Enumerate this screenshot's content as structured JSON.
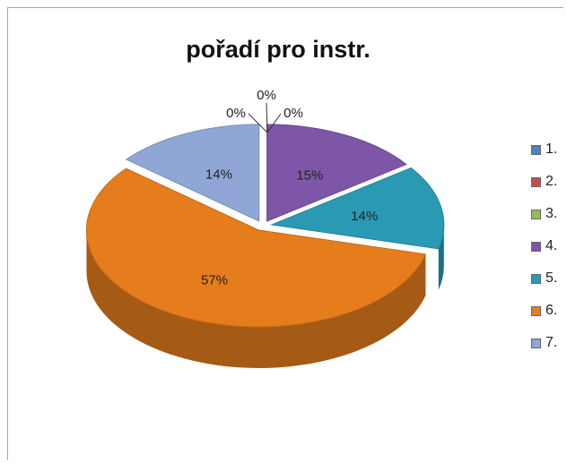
{
  "chart_data": {
    "type": "pie",
    "title": "pořadí pro instr.",
    "categories": [
      "1.",
      "2.",
      "3.",
      "4.",
      "5.",
      "6.",
      "7."
    ],
    "values": [
      0,
      0,
      0,
      15,
      14,
      57,
      14
    ],
    "labels": [
      "0%",
      "0%",
      "0%",
      "15%",
      "14%",
      "57%",
      "14%"
    ],
    "colors": [
      "#4f81bd",
      "#c0504d",
      "#9bbb59",
      "#7e56a8",
      "#2a9ab4",
      "#e57d1d",
      "#8fa6d6"
    ],
    "legend_position": "right",
    "style": "3d-exploded"
  }
}
